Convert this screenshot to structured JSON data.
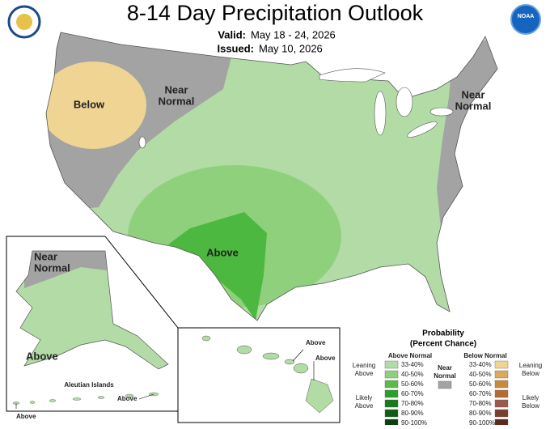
{
  "header": {
    "title": "8-14 Day Precipitation Outlook",
    "valid_label": "Valid:",
    "valid": "May 18 - 24, 2026",
    "issued_label": "Issued:",
    "issued": "May 10, 2026",
    "logo": "NOAA"
  },
  "map_labels": {
    "conus_below": "Below",
    "conus_near_west": [
      "Near",
      "Normal"
    ],
    "conus_above": "Above",
    "conus_near_east": [
      "Near",
      "Normal"
    ],
    "alaska_near": [
      "Near",
      "Normal"
    ],
    "alaska_above": "Above",
    "aleutian_title": "Aleutian Islands",
    "aleutian_above_1": "Above",
    "aleutian_above_2": "Above",
    "hawaii_above_1": "Above",
    "hawaii_above_2": "Above"
  },
  "legend": {
    "title": "Probability",
    "subtitle": "(Percent Chance)",
    "above_title": "Above Normal",
    "below_title": "Below Normal",
    "leaning_above": [
      "Leaning",
      "Above"
    ],
    "likely_above": [
      "Likely",
      "Above"
    ],
    "near_normal": [
      "Near",
      "Normal"
    ],
    "leaning_below": [
      "Leaning",
      "Below"
    ],
    "likely_below": [
      "Likely",
      "Below"
    ],
    "ranges": [
      "33-40%",
      "40-50%",
      "50-60%",
      "60-70%",
      "70-80%",
      "80-90%",
      "90-100%"
    ],
    "above_colors": [
      "#b3dba6",
      "#8fd07d",
      "#5cba49",
      "#2e9e2b",
      "#177a1c",
      "#0f5e14",
      "#0a4010"
    ],
    "below_colors": [
      "#f0d493",
      "#ddaa5c",
      "#c88a3d",
      "#b56b32",
      "#9c5a4e",
      "#7a3e2c",
      "#5a2a1e"
    ],
    "near_normal_color": "#a3a3a3"
  }
}
